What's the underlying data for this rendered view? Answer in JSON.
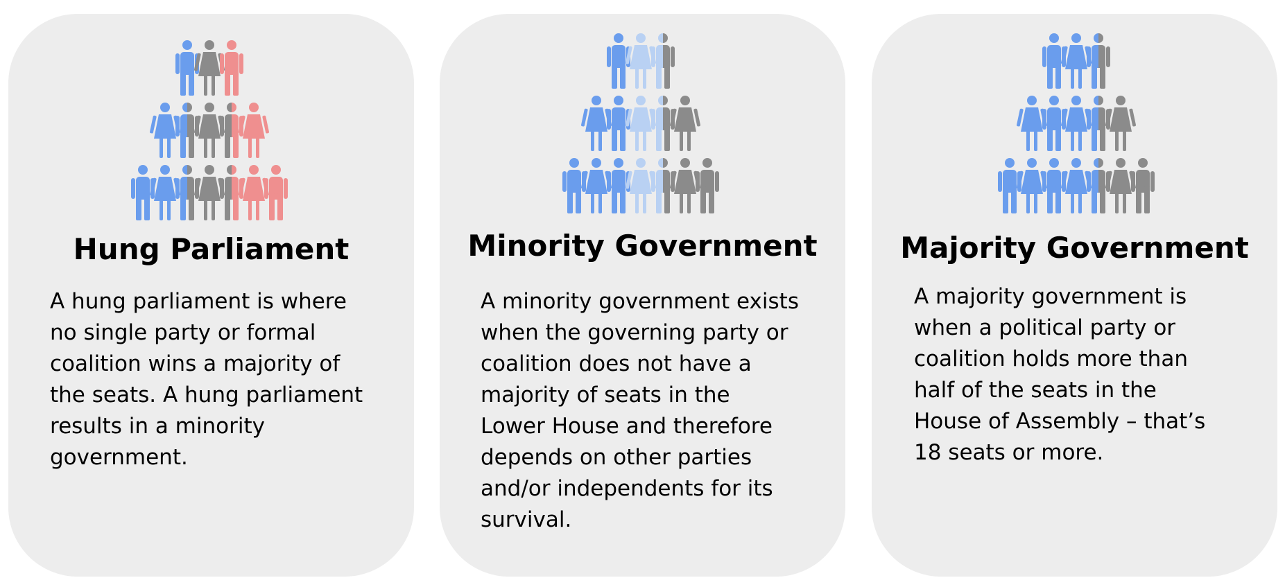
{
  "colors": {
    "card_bg": "#ededed",
    "party_blue": "#6a9ded",
    "party_light_blue": "#b9d1f3",
    "independent_grey": "#8b8b8b",
    "party_red": "#ef8f8f"
  },
  "cards": [
    {
      "title": "Hung Parliament",
      "description": "A hung parliament is where\nno single party or formal\ncoalition wins a majority of\nthe seats. A hung parliament\nresults in a minority\ngovernment.",
      "icon": "people-pyramid-icon",
      "rows": [
        [
          "blue",
          "grey",
          "red"
        ],
        [
          "blue",
          "blue-grey",
          "grey",
          "red-grey",
          "red"
        ],
        [
          "blue",
          "blue",
          "blue-grey",
          "grey",
          "red-grey",
          "red",
          "red"
        ]
      ]
    },
    {
      "title": "Minority Government",
      "description": "A minority government exists\nwhen the governing party or\ncoalition does not have a\nmajority of seats in the\nLower House and therefore\ndepends on other parties\nand/or independents for its\nsurvival.",
      "icon": "people-pyramid-icon",
      "rows": [
        [
          "blue",
          "light",
          "light-grey"
        ],
        [
          "blue",
          "blue",
          "light",
          "light-grey",
          "grey"
        ],
        [
          "blue",
          "blue",
          "blue",
          "light",
          "light-grey",
          "grey",
          "grey"
        ]
      ]
    },
    {
      "title": "Majority Government",
      "description": "A majority government is\nwhen a political party or\ncoalition holds more than\nhalf of the seats in the\nHouse of Assembly – that’s\n18 seats or more.",
      "icon": "people-pyramid-icon",
      "rows": [
        [
          "blue",
          "blue",
          "blue-grey"
        ],
        [
          "blue",
          "blue",
          "blue",
          "blue-grey",
          "grey"
        ],
        [
          "blue",
          "blue",
          "blue",
          "blue",
          "blue-grey",
          "grey",
          "grey"
        ]
      ]
    }
  ]
}
